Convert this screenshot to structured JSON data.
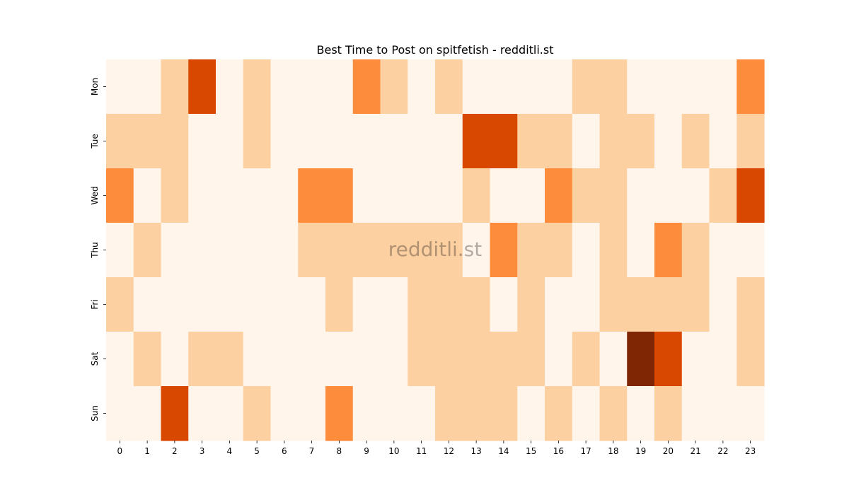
{
  "chart_data": {
    "type": "heatmap",
    "title": "Best Time to Post on spitfetish - redditli.st",
    "watermark": "redditli.st",
    "xlabel": "",
    "ylabel": "",
    "x_categories": [
      "0",
      "1",
      "2",
      "3",
      "4",
      "5",
      "6",
      "7",
      "8",
      "9",
      "10",
      "11",
      "12",
      "13",
      "14",
      "15",
      "16",
      "17",
      "18",
      "19",
      "20",
      "21",
      "22",
      "23"
    ],
    "y_categories": [
      "Mon",
      "Tue",
      "Wed",
      "Thu",
      "Fri",
      "Sat",
      "Sun"
    ],
    "colormap": "Oranges",
    "colors": [
      "#fff5eb",
      "#fdd0a2",
      "#fd8d3c",
      "#d94801",
      "#7f2704"
    ],
    "values": [
      [
        0,
        0,
        1,
        3,
        0,
        1,
        0,
        0,
        0,
        2,
        1,
        0,
        1,
        0,
        0,
        0,
        0,
        1,
        1,
        0,
        0,
        0,
        0,
        2
      ],
      [
        1,
        1,
        1,
        0,
        0,
        1,
        0,
        0,
        0,
        0,
        0,
        0,
        0,
        3,
        3,
        1,
        1,
        0,
        1,
        1,
        0,
        1,
        0,
        1
      ],
      [
        2,
        0,
        1,
        0,
        0,
        0,
        0,
        2,
        2,
        0,
        0,
        0,
        0,
        1,
        0,
        0,
        2,
        1,
        1,
        0,
        0,
        0,
        1,
        3
      ],
      [
        0,
        1,
        0,
        0,
        0,
        0,
        0,
        1,
        1,
        1,
        1,
        1,
        1,
        0,
        2,
        1,
        1,
        0,
        1,
        0,
        2,
        1,
        0,
        0
      ],
      [
        1,
        0,
        0,
        0,
        0,
        0,
        0,
        0,
        1,
        0,
        0,
        1,
        1,
        1,
        0,
        1,
        0,
        0,
        1,
        1,
        1,
        1,
        0,
        1
      ],
      [
        0,
        1,
        0,
        1,
        1,
        0,
        0,
        0,
        0,
        0,
        0,
        1,
        1,
        1,
        1,
        1,
        0,
        1,
        0,
        4,
        3,
        0,
        0,
        1
      ],
      [
        0,
        0,
        3,
        0,
        0,
        1,
        0,
        0,
        2,
        0,
        0,
        0,
        1,
        1,
        1,
        0,
        1,
        0,
        1,
        0,
        1,
        0,
        0,
        0
      ]
    ]
  }
}
